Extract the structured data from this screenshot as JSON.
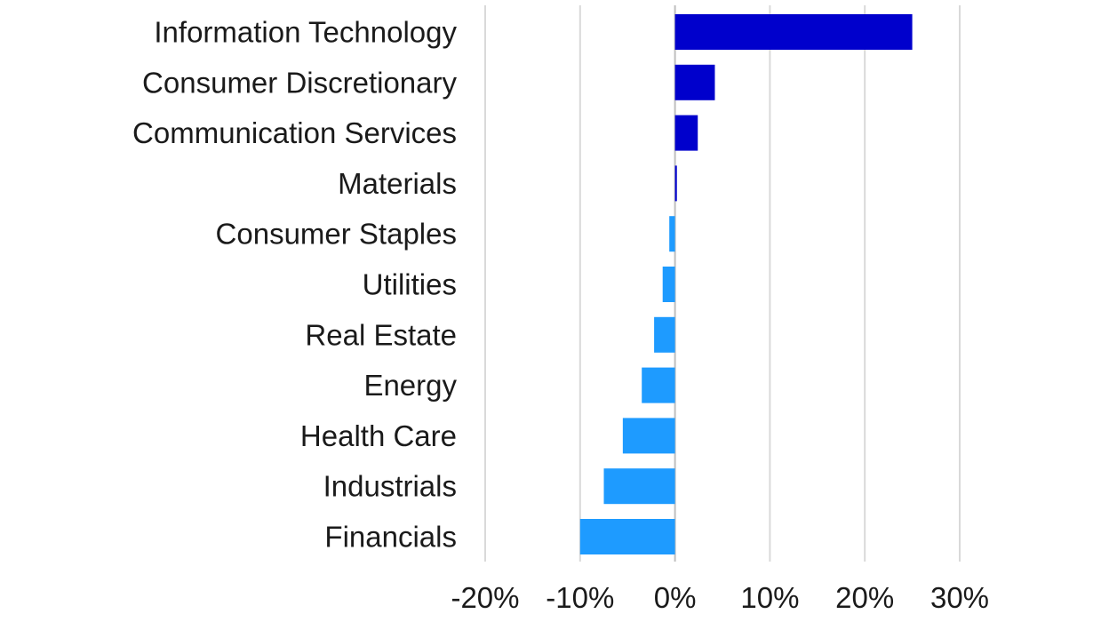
{
  "chart_data": {
    "type": "bar",
    "orientation": "horizontal",
    "title": "",
    "xlabel": "",
    "ylabel": "",
    "xlim": [
      -20,
      30
    ],
    "x_ticks": [
      -20,
      -10,
      0,
      10,
      20,
      30
    ],
    "tick_suffix": "%",
    "grid": true,
    "categories": [
      "Information Technology",
      "Consumer Discretionary",
      "Communication Services",
      "Materials",
      "Consumer Staples",
      "Utilities",
      "Real Estate",
      "Energy",
      "Health Care",
      "Industrials",
      "Financials"
    ],
    "values": [
      25.0,
      4.2,
      2.4,
      0.2,
      -0.6,
      -1.3,
      -2.2,
      -3.5,
      -5.5,
      -7.5,
      -10.0
    ],
    "colors": {
      "positive": "#0000cc",
      "negative": "#1e9bff"
    }
  }
}
